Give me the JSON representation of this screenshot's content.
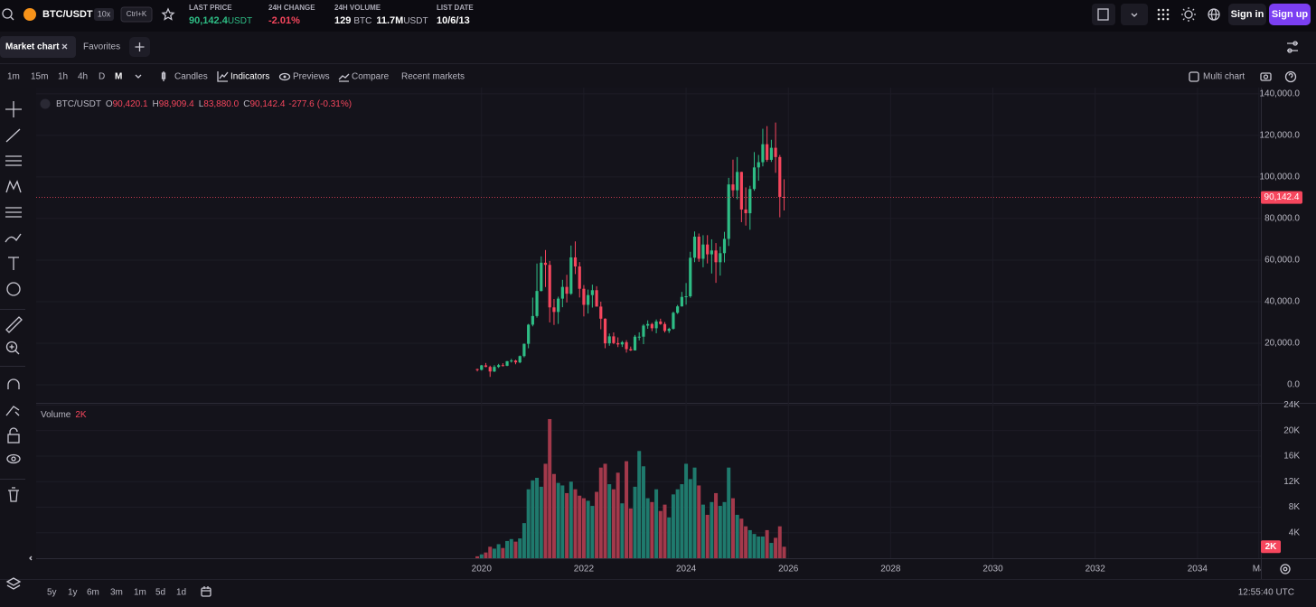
{
  "header": {
    "symbol": "BTC/USDT",
    "leverage": "10x",
    "shortcut": "Ctrl+K",
    "stats": [
      {
        "label": "LAST PRICE",
        "value": "90,142.4",
        "unit": "USDT"
      },
      {
        "label": "24H CHANGE",
        "value": "-2.01%"
      },
      {
        "label": "24H VOLUME",
        "value": "129",
        "unit": "BTC",
        "value2": "11.7M",
        "unit2": "USDT"
      },
      {
        "label": "LIST DATE",
        "value": "10/6/13"
      }
    ],
    "sign_in": "Sign in",
    "sign_up": "Sign up"
  },
  "tabs": [
    "Market chart",
    "Favorites"
  ],
  "toolbar": {
    "intervals": [
      "1m",
      "15m",
      "1h",
      "4h",
      "D",
      "M"
    ],
    "active_interval": 5,
    "buttons": [
      "Candles",
      "Indicators",
      "Previews",
      "Compare",
      "Recent markets"
    ],
    "active_button": 1,
    "multi_chart": "Multi chart"
  },
  "legend": {
    "symbol": "BTC/USDT",
    "fields": [
      {
        "key": "O",
        "value": "90,420.1"
      },
      {
        "key": "H",
        "value": "98,909.4"
      },
      {
        "key": "L",
        "value": "83,880.0"
      },
      {
        "key": "C",
        "value": "90,142.4"
      }
    ],
    "change": "-277.6",
    "change_pct": "(-0.31%)"
  },
  "chart_data": [
    {
      "type": "candlestick",
      "up_color": "#2ebd85",
      "down_color": "#f6465d",
      "grid": true,
      "last_value_label": "90,142.4",
      "x": [
        2019.917,
        2020.0,
        2020.083,
        2020.167,
        2020.25,
        2020.333,
        2020.417,
        2020.5,
        2020.583,
        2020.667,
        2020.75,
        2020.833,
        2020.917,
        2021.0,
        2021.083,
        2021.167,
        2021.25,
        2021.333,
        2021.417,
        2021.5,
        2021.583,
        2021.667,
        2021.75,
        2021.833,
        2021.917,
        2022.0,
        2022.083,
        2022.167,
        2022.25,
        2022.333,
        2022.417,
        2022.5,
        2022.583,
        2022.667,
        2022.75,
        2022.833,
        2022.917,
        2023.0,
        2023.083,
        2023.167,
        2023.25,
        2023.333,
        2023.417,
        2023.5,
        2023.583,
        2023.667,
        2023.75,
        2023.833,
        2023.917,
        2024.0,
        2024.083,
        2024.167,
        2024.25,
        2024.333,
        2024.417,
        2024.5,
        2024.583,
        2024.667,
        2024.75,
        2024.833,
        2024.917,
        2025.0,
        2025.083,
        2025.167,
        2025.25,
        2025.333,
        2025.417,
        2025.5,
        2025.583,
        2025.667,
        2025.75,
        2025.833,
        2025.917
      ],
      "open": [
        7540,
        7200,
        9350,
        8600,
        6400,
        8620,
        9450,
        9140,
        11350,
        11650,
        10780,
        13800,
        19700,
        28920,
        33090,
        45140,
        58740,
        57690,
        37250,
        35040,
        41460,
        47100,
        43820,
        61300,
        56950,
        46200,
        38470,
        43160,
        45510,
        37630,
        31800,
        19940,
        23300,
        20050,
        19420,
        20490,
        17160,
        16540,
        23140,
        23150,
        28480,
        29230,
        27210,
        30470,
        29230,
        25940,
        26960,
        34640,
        37720,
        42280,
        42580,
        61130,
        71280,
        60640,
        67500,
        62770,
        64630,
        58970,
        63330,
        70220,
        96410,
        93580,
        102430,
        84350,
        82550,
        94210,
        104600,
        107100,
        115760,
        108250,
        114050,
        109600,
        90420.1
      ],
      "high": [
        7750,
        9580,
        10500,
        9190,
        9460,
        10070,
        10380,
        11450,
        12470,
        12050,
        14100,
        19860,
        29300,
        41950,
        58350,
        61780,
        64850,
        59600,
        41300,
        42400,
        50500,
        52920,
        67000,
        69000,
        59050,
        47990,
        45820,
        48190,
        47440,
        40000,
        31990,
        24670,
        25200,
        22800,
        21100,
        21480,
        18390,
        23960,
        25250,
        29180,
        31000,
        29820,
        31430,
        31800,
        30200,
        27480,
        35200,
        38420,
        44700,
        48970,
        64000,
        73780,
        72800,
        71980,
        72000,
        70000,
        68200,
        66500,
        73600,
        99590,
        108350,
        109590,
        102500,
        95000,
        95760,
        111980,
        110600,
        123200,
        124470,
        117900,
        126200,
        110600,
        98909.4
      ],
      "low": [
        6430,
        6850,
        8450,
        3800,
        6150,
        8100,
        8830,
        8970,
        10700,
        9870,
        10370,
        13200,
        17570,
        28130,
        32300,
        44900,
        47040,
        30000,
        28800,
        29300,
        37330,
        39600,
        43280,
        53260,
        42000,
        32900,
        34300,
        37160,
        37580,
        26700,
        17600,
        18780,
        19520,
        18130,
        18190,
        15480,
        16260,
        16500,
        21350,
        19550,
        26940,
        25810,
        24800,
        28860,
        25170,
        24900,
        26540,
        34100,
        37630,
        38550,
        41880,
        59000,
        59190,
        56550,
        58400,
        53550,
        49050,
        52550,
        58900,
        66800,
        90500,
        89260,
        78260,
        76600,
        74600,
        93350,
        98200,
        105100,
        107300,
        107250,
        102000,
        80600,
        83880
      ],
      "close": [
        7200,
        9350,
        8600,
        6400,
        8620,
        9450,
        9140,
        11350,
        11650,
        10780,
        13800,
        19700,
        28920,
        33090,
        45140,
        58740,
        57690,
        37250,
        35040,
        41460,
        47100,
        43820,
        61300,
        56950,
        46200,
        38470,
        43160,
        45510,
        37630,
        31800,
        19940,
        23300,
        20050,
        19420,
        20490,
        17160,
        16540,
        23140,
        23150,
        28480,
        29230,
        27210,
        30470,
        29230,
        25940,
        26960,
        34640,
        37720,
        42280,
        42580,
        61130,
        71280,
        60640,
        67500,
        62770,
        64630,
        58970,
        63330,
        70220,
        96410,
        93580,
        102430,
        84350,
        82550,
        94210,
        104600,
        107100,
        115760,
        108250,
        114050,
        109600,
        90420.1,
        90142.4
      ],
      "xlim": [
        2011.29,
        2035.24
      ],
      "xticks": [
        2020,
        2022,
        2024,
        2026,
        2028,
        2030,
        2032,
        2034,
        {
          "value": 2035.2,
          "label": "Ma"
        }
      ],
      "ylim": [
        -8700,
        143000
      ],
      "yticks": [
        {
          "value": 0,
          "label": "0.0"
        },
        {
          "value": 20000,
          "label": "20,000.0"
        },
        {
          "value": 40000,
          "label": "40,000.0"
        },
        {
          "value": 60000,
          "label": "60,000.0"
        },
        {
          "value": 80000,
          "label": "80,000.0"
        },
        {
          "value": 100000,
          "label": "100,000.0"
        },
        {
          "value": 120000,
          "label": "120,000.0"
        },
        {
          "value": 140000,
          "label": "140,000.0"
        }
      ]
    },
    {
      "type": "bar",
      "title": "Volume",
      "up_color": "#1f7a6d",
      "down_color": "#a3394b",
      "grid": true,
      "last_value_label": "2K",
      "x": [
        2019.917,
        2020.0,
        2020.083,
        2020.167,
        2020.25,
        2020.333,
        2020.417,
        2020.5,
        2020.583,
        2020.667,
        2020.75,
        2020.833,
        2020.917,
        2021.0,
        2021.083,
        2021.167,
        2021.25,
        2021.333,
        2021.417,
        2021.5,
        2021.583,
        2021.667,
        2021.75,
        2021.833,
        2021.917,
        2022.0,
        2022.083,
        2022.167,
        2022.25,
        2022.333,
        2022.417,
        2022.5,
        2022.583,
        2022.667,
        2022.75,
        2022.833,
        2022.917,
        2023.0,
        2023.083,
        2023.167,
        2023.25,
        2023.333,
        2023.417,
        2023.5,
        2023.583,
        2023.667,
        2023.75,
        2023.833,
        2023.917,
        2024.0,
        2024.083,
        2024.167,
        2024.25,
        2024.333,
        2024.417,
        2024.5,
        2024.583,
        2024.667,
        2024.75,
        2024.833,
        2024.917,
        2025.0,
        2025.083,
        2025.167,
        2025.25,
        2025.333,
        2025.417,
        2025.5,
        2025.583,
        2025.667,
        2025.75,
        2025.833,
        2025.917
      ],
      "values": [
        0.3,
        0.6,
        0.9,
        1.8,
        1.5,
        2.2,
        1.6,
        2.7,
        3.0,
        2.6,
        3.1,
        5.5,
        10.8,
        12.2,
        12.6,
        11.2,
        14.8,
        21.8,
        13.2,
        11.8,
        11.4,
        10.2,
        12.0,
        10.8,
        9.8,
        9.4,
        9.0,
        8.2,
        10.4,
        14.2,
        14.8,
        11.6,
        10.8,
        13.4,
        8.6,
        15.2,
        7.8,
        11.2,
        16.8,
        14.4,
        9.4,
        8.8,
        10.8,
        7.4,
        8.4,
        6.4,
        10.0,
        10.8,
        11.6,
        14.8,
        12.4,
        14.2,
        11.4,
        8.4,
        6.8,
        8.8,
        10.2,
        8.2,
        8.8,
        14.2,
        9.4,
        6.8,
        6.2,
        5.0,
        4.4,
        3.8,
        3.4,
        3.4,
        4.4,
        2.4,
        3.2,
        5.0,
        1.8
      ],
      "xlim": [
        2011.29,
        2035.24
      ],
      "ylim": [
        0,
        24.2
      ],
      "yticks": [
        {
          "value": 4,
          "label": "4K"
        },
        {
          "value": 8,
          "label": "8K"
        },
        {
          "value": 12,
          "label": "12K"
        },
        {
          "value": 16,
          "label": "16K"
        },
        {
          "value": 20,
          "label": "20K"
        },
        {
          "value": 24,
          "label": "24K"
        }
      ]
    }
  ],
  "range_buttons": [
    "5y",
    "1y",
    "6m",
    "3m",
    "1m",
    "5d",
    "1d"
  ],
  "clock": "12:55:40 UTC"
}
